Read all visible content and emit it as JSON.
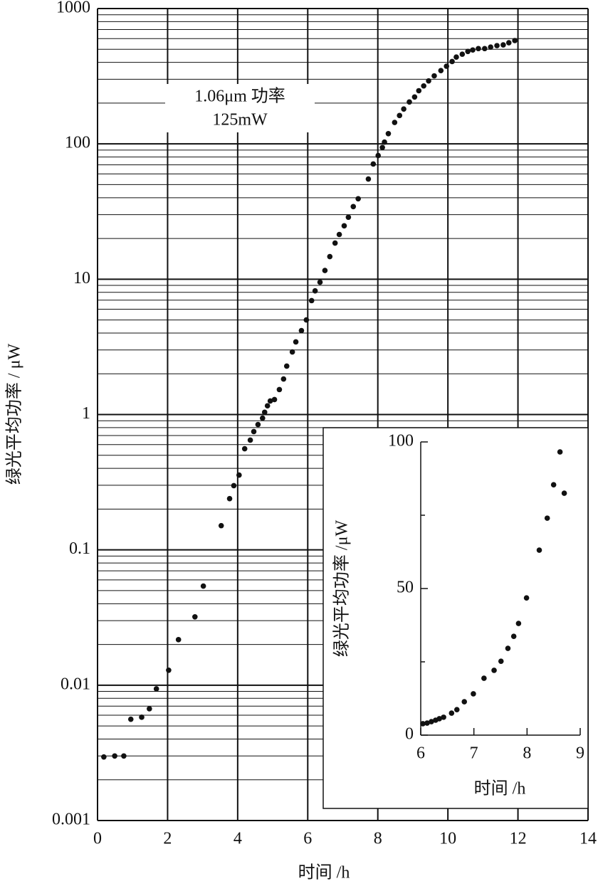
{
  "chart_data": [
    {
      "type": "scatter",
      "x_label": "时间 /h",
      "y_label": "绿光平均功率 / μW",
      "annotation": [
        "1.06μm 功率",
        "125mW"
      ],
      "log_y": true,
      "grid": true,
      "minor_grid": true,
      "color": "#111111",
      "xlim": [
        0,
        14
      ],
      "xticks": [
        0,
        2,
        4,
        6,
        8,
        10,
        12,
        14
      ],
      "ylim": [
        0.001,
        1000
      ],
      "yticks": [
        1000,
        100,
        10,
        1,
        0.1,
        0.01,
        0.001
      ],
      "x": [
        0.18,
        0.49,
        0.75,
        0.95,
        1.26,
        1.48,
        1.68,
        2.03,
        2.31,
        2.78,
        3.02,
        3.53,
        3.77,
        3.89,
        4.04,
        4.2,
        4.36,
        4.46,
        4.58,
        4.71,
        4.77,
        4.85,
        4.93,
        5.05,
        5.19,
        5.31,
        5.4,
        5.56,
        5.66,
        5.82,
        5.96,
        6.11,
        6.21,
        6.35,
        6.49,
        6.63,
        6.78,
        6.9,
        7.04,
        7.16,
        7.3,
        7.44,
        7.73,
        7.87,
        8.01,
        8.13,
        8.19,
        8.3,
        8.48,
        8.62,
        8.74,
        8.9,
        9.05,
        9.17,
        9.31,
        9.45,
        9.61,
        9.8,
        9.96,
        10.12,
        10.24,
        10.41,
        10.57,
        10.71,
        10.87,
        11.05,
        11.22,
        11.4,
        11.58,
        11.74,
        11.91
      ],
      "values": [
        0.00295,
        0.003,
        0.003,
        0.0056,
        0.0058,
        0.0067,
        0.0094,
        0.0129,
        0.0217,
        0.032,
        0.054,
        0.151,
        0.239,
        0.298,
        0.357,
        0.559,
        0.647,
        0.748,
        0.844,
        0.94,
        1.04,
        1.16,
        1.26,
        1.29,
        1.53,
        1.83,
        2.28,
        2.9,
        3.44,
        4.17,
        5.0,
        6.95,
        8.2,
        9.5,
        11.6,
        14.7,
        18.5,
        21.4,
        24.8,
        28.7,
        34.4,
        39.3,
        55,
        71,
        82,
        94,
        103,
        119,
        144,
        162,
        181,
        204,
        222,
        247,
        268,
        292,
        318,
        348,
        375,
        406,
        438,
        460,
        482,
        494,
        506,
        506,
        519,
        532,
        539,
        559,
        580
      ]
    },
    {
      "type": "scatter",
      "x_label": "时间 /h",
      "y_label": "绿光平均功率 /μW",
      "log_y": false,
      "grid": false,
      "color": "#111111",
      "xlim": [
        6,
        9
      ],
      "xticks": [
        6,
        7,
        8,
        9
      ],
      "ylim": [
        0,
        100
      ],
      "yticks": [
        0,
        50,
        100
      ],
      "minor_yticks": [
        25,
        75
      ],
      "x": [
        6.04,
        6.12,
        6.2,
        6.28,
        6.35,
        6.43,
        6.58,
        6.68,
        6.82,
        6.99,
        7.19,
        7.38,
        7.51,
        7.64,
        7.75,
        7.84,
        7.99,
        8.23,
        8.38,
        8.5,
        8.62,
        8.7
      ],
      "values": [
        3.9,
        4.1,
        4.6,
        5.1,
        5.6,
        6.1,
        7.5,
        8.7,
        11.4,
        14.1,
        19.4,
        22.1,
        25.2,
        29.6,
        33.7,
        38.1,
        46.8,
        63.1,
        74,
        85.4,
        96.6,
        82.5
      ]
    }
  ]
}
